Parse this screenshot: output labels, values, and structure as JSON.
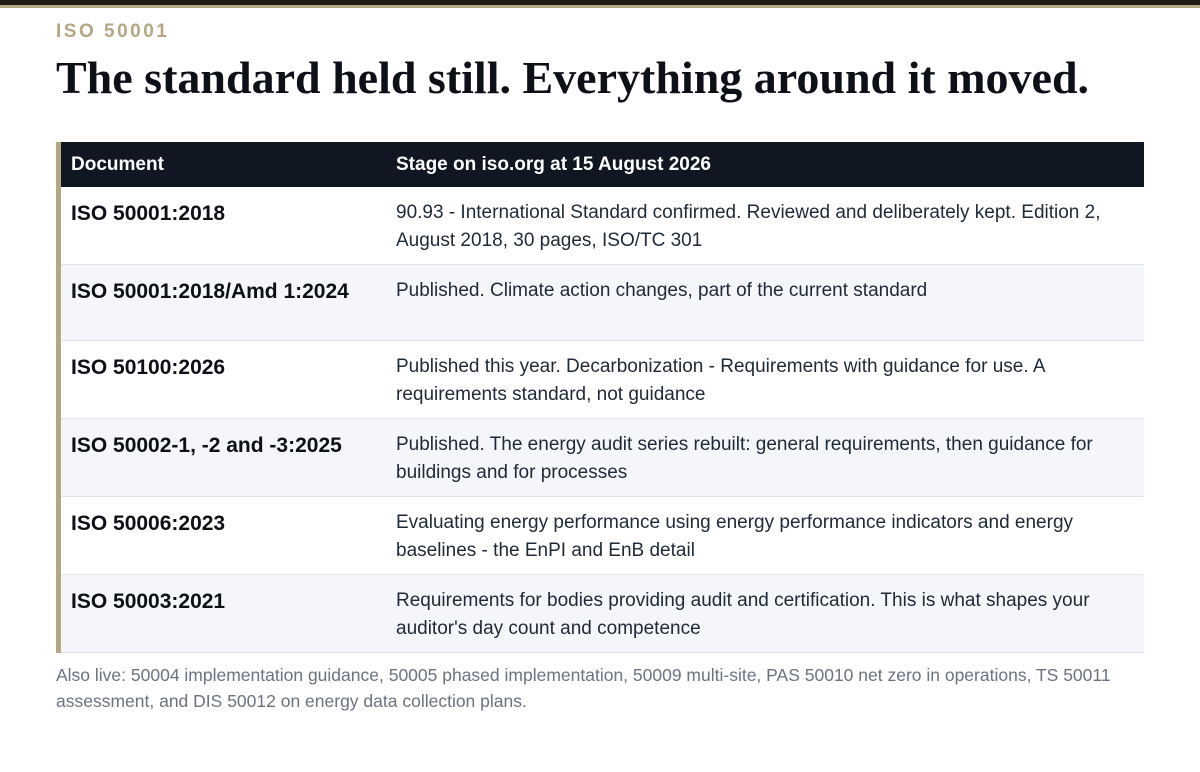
{
  "eyebrow": "ISO 50001",
  "headline": "The standard held still. Everything around it moved.",
  "table": {
    "headers": [
      "Document",
      "Stage on iso.org at 15 August 2026"
    ],
    "rows": [
      {
        "document": "ISO 50001:2018",
        "stage": "90.93 - International Standard confirmed. Reviewed and deliberately kept. Edition 2, August 2018, 30 pages, ISO/TC 301"
      },
      {
        "document": "ISO 50001:2018/Amd 1:2024",
        "stage": "Published. Climate action changes, part of the current standard"
      },
      {
        "document": "ISO 50100:2026",
        "stage": "Published this year. Decarbonization - Requirements with guidance for use. A requirements standard, not guidance"
      },
      {
        "document": "ISO 50002-1, -2 and -3:2025",
        "stage": "Published. The energy audit series rebuilt: general requirements, then guidance for buildings and for processes"
      },
      {
        "document": "ISO 50006:2023",
        "stage": "Evaluating energy performance using energy performance indicators and energy baselines - the EnPI and EnB detail"
      },
      {
        "document": "ISO 50003:2021",
        "stage": "Requirements for bodies providing audit and certification. This is what shapes your auditor's day count and competence"
      }
    ]
  },
  "footnote": "Also live: 50004 implementation guidance, 50005 phased implementation, 50009 multi-site, PAS 50010 net zero in operations, TS 50011 assessment, and DIS 50012 on energy data collection plans.",
  "colors": {
    "accent": "#b5a684",
    "header_bg": "#111722",
    "stripe": "#f4f6f9",
    "footnote": "#6b7280"
  }
}
